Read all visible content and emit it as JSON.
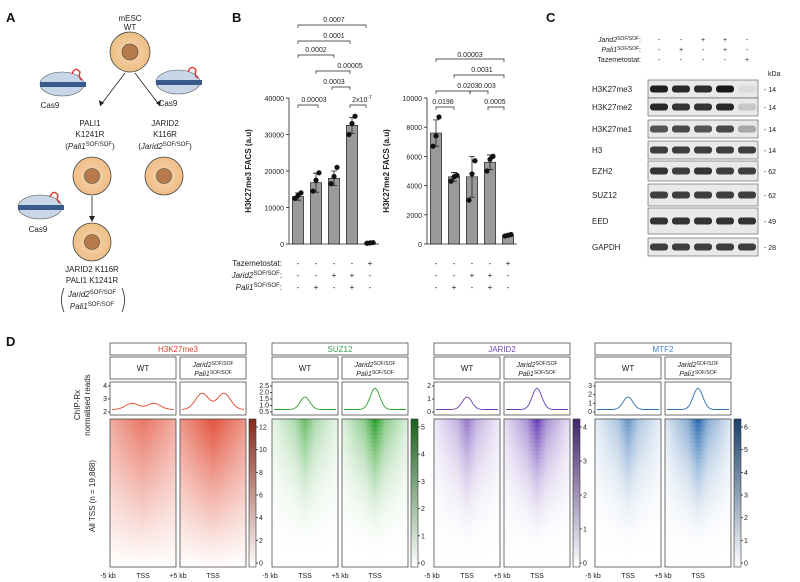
{
  "panel_labels": {
    "a": "A",
    "b": "B",
    "c": "C",
    "d": "D"
  },
  "panel_a": {
    "top_cell": [
      "mESC",
      "WT"
    ],
    "cas9": "Cas9",
    "left_mut": [
      "PALI1",
      "K1241R"
    ],
    "left_geno": "Pali1",
    "right_mut": [
      "JARID2",
      "K116R"
    ],
    "right_geno": "Jarid2",
    "sup": "SOF/SOF",
    "bottom_mut": [
      "JARID2 K116R",
      "PALI1 K1241R"
    ],
    "bottom_geno": [
      "Jarid2",
      "Pali1"
    ]
  },
  "panel_b": {
    "row_labels": {
      "taz": "Tazemetostat:",
      "jarid": "Jarid2",
      "pali": "Pali1",
      "sup": "SOF/SOF",
      "colon": ":"
    },
    "design": {
      "jarid2": [
        "-",
        "-",
        "+",
        "+",
        "-"
      ],
      "pali1": [
        "-",
        "+",
        "-",
        "+",
        "-"
      ],
      "taz": [
        "-",
        "-",
        "-",
        "-",
        "+"
      ]
    },
    "left_pvals": [
      "0.0007",
      "0.0001",
      "0.0002",
      "0.00005",
      "0.0003",
      "0.00003",
      "2x10"
    ],
    "left_pval_exp": "-7",
    "right_pvals": [
      "0.00003",
      "0.0203",
      "0.0031",
      "0.0198",
      "0.003",
      "0.0005"
    ]
  },
  "chart_data": [
    {
      "type": "bar",
      "ylabel": "H3K27me3 FACS (a.u)",
      "ylim": [
        0,
        40000
      ],
      "yticks": [
        0,
        10000,
        20000,
        30000,
        40000
      ],
      "values": [
        13000,
        16800,
        18000,
        32500,
        300
      ],
      "errors": [
        1000,
        2600,
        2000,
        2200,
        150
      ],
      "points": [
        [
          12500,
          13300,
          14000
        ],
        [
          14500,
          17500,
          19500
        ],
        [
          16500,
          18500,
          21000
        ],
        [
          30000,
          33000,
          35000
        ],
        [
          200,
          300,
          400
        ]
      ]
    },
    {
      "type": "bar",
      "ylabel": "H3K27me2 FACS (a.u)",
      "ylim": [
        0,
        10000
      ],
      "yticks": [
        0,
        2000,
        4000,
        6000,
        8000,
        10000
      ],
      "values": [
        7600,
        4600,
        4600,
        5600,
        600
      ],
      "errors": [
        900,
        300,
        1400,
        500,
        60
      ],
      "points": [
        [
          6700,
          7400,
          8700
        ],
        [
          4300,
          4600,
          4700
        ],
        [
          3000,
          4800,
          5700
        ],
        [
          5000,
          5800,
          6000
        ],
        [
          550,
          600,
          650
        ]
      ]
    }
  ],
  "panel_c": {
    "rows": [
      {
        "label": "Jarid2",
        "sup": "SOF/SOF",
        "italic": true,
        "vals": [
          "-",
          "-",
          "+",
          "+",
          "-"
        ]
      },
      {
        "label": "Pali1",
        "sup": "SOF/SOF",
        "italic": true,
        "vals": [
          "-",
          "+",
          "-",
          "+",
          "-"
        ]
      },
      {
        "label": "Tazemetostat:",
        "sup": "",
        "italic": false,
        "vals": [
          "-",
          "-",
          "-",
          "-",
          "+"
        ]
      }
    ],
    "kda": "kDa",
    "blots": [
      {
        "name": "H3K27me3",
        "kda": "14",
        "intensity": [
          0.95,
          0.9,
          0.88,
          0.98,
          0.05
        ]
      },
      {
        "name": "H3K27me2",
        "kda": "14",
        "intensity": [
          0.9,
          0.85,
          0.85,
          0.9,
          0.15
        ]
      },
      {
        "name": "H3K27me1",
        "kda": "14",
        "intensity": [
          0.7,
          0.75,
          0.7,
          0.75,
          0.3
        ]
      },
      {
        "name": "H3",
        "kda": "14",
        "intensity": [
          0.8,
          0.8,
          0.8,
          0.8,
          0.8
        ]
      },
      {
        "name": "EZH2",
        "kda": "62",
        "intensity": [
          0.85,
          0.8,
          0.85,
          0.8,
          0.8
        ]
      },
      {
        "name": "SUZ12",
        "kda": "62",
        "intensity": [
          0.8,
          0.8,
          0.8,
          0.8,
          0.8
        ]
      },
      {
        "name": "EED",
        "kda": "49",
        "intensity": [
          0.85,
          0.85,
          0.85,
          0.85,
          0.85
        ]
      },
      {
        "name": "GAPDH",
        "kda": "28",
        "intensity": [
          0.8,
          0.8,
          0.8,
          0.8,
          0.8
        ]
      }
    ]
  },
  "panel_d": {
    "ylabel_profile": [
      "ChIP-Rx",
      "normalised reads"
    ],
    "ylabel_heat": "All TSS  (n = 19,888)",
    "wt": "WT",
    "mut_lines": [
      "Jarid2",
      "Pali1"
    ],
    "mut_sup": "SOF/SOF",
    "x_left": "-5 kb",
    "x_mid": "TSS",
    "x_right": "+5 kb",
    "groups": [
      {
        "name": "H3K27me3",
        "color": "#e0442c",
        "title_color": "#d6402c",
        "yticks": [
          "2",
          "3",
          "4"
        ],
        "cbar": [
          "0",
          "2",
          "4",
          "6",
          "8",
          "10",
          "12"
        ]
      },
      {
        "name": "SUZ12",
        "color": "#2ca02c",
        "title_color": "#3a9c4a",
        "yticks": [
          "0.5",
          "1.0",
          "1.5",
          "2.0",
          "2.5"
        ],
        "cbar": [
          "0",
          "1",
          "2",
          "3",
          "4",
          "5"
        ]
      },
      {
        "name": "JARID2",
        "color": "#6a3fb5",
        "title_color": "#6e46b0",
        "yticks": [
          "0",
          "1",
          "2"
        ],
        "cbar": [
          "0",
          "1",
          "2",
          "3",
          "4"
        ]
      },
      {
        "name": "MTF2",
        "color": "#2b6bb0",
        "title_color": "#3f7fc8",
        "yticks": [
          "0",
          "1",
          "2",
          "3"
        ],
        "cbar": [
          "0",
          "1",
          "2",
          "3",
          "4",
          "5",
          "6"
        ]
      }
    ]
  }
}
